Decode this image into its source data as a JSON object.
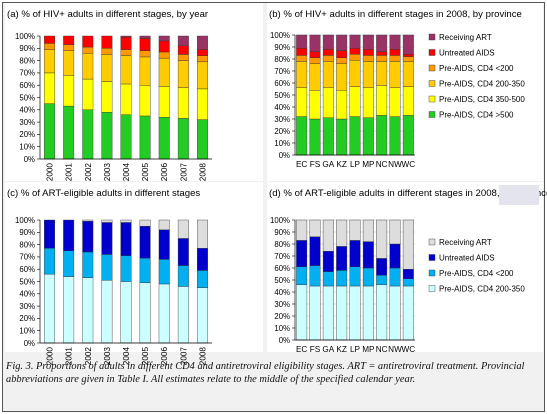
{
  "figure": {
    "caption": "Fig. 3. Proportions of adults in different CD4 and antiretroviral eligibility stages. ART = antiretroviral treatment. Provincial abbreviations are given in Table I. All estimates relate to the middle of the specified calendar year."
  },
  "chart_data": [
    {
      "id": "a",
      "type": "bar",
      "stacked": true,
      "title": "(a) % of HIV+ adults in different stages, by year",
      "categories": [
        "2000",
        "2001",
        "2002",
        "2003",
        "2004",
        "2005",
        "2006",
        "2007",
        "2008"
      ],
      "ylim": [
        0,
        100
      ],
      "yticks": [
        "0%",
        "10%",
        "20%",
        "30%",
        "40%",
        "50%",
        "60%",
        "70%",
        "80%",
        "90%",
        "100%"
      ],
      "grid": false,
      "series": [
        {
          "name": "Pre-AIDS, CD4 >500",
          "color": "#22cc22",
          "values": [
            45,
            43,
            40,
            38,
            36,
            35,
            34,
            33,
            32
          ]
        },
        {
          "name": "Pre-AIDS, CD4 350-500",
          "color": "#ffff00",
          "values": [
            25,
            25,
            25,
            25,
            25,
            25,
            25,
            25,
            25
          ]
        },
        {
          "name": "Pre-AIDS, CD4 200-350",
          "color": "#ffcc00",
          "values": [
            19,
            20,
            21,
            22,
            23,
            23,
            23,
            22,
            22
          ]
        },
        {
          "name": "Pre-AIDS, CD4 <200",
          "color": "#ff9900",
          "values": [
            5,
            5,
            5,
            5,
            5,
            5,
            5,
            5,
            5
          ]
        },
        {
          "name": "Untreated AIDS",
          "color": "#ff0000",
          "values": [
            6,
            7,
            9,
            10,
            10,
            10,
            9,
            7,
            5
          ]
        },
        {
          "name": "Receiving ART",
          "color": "#993366",
          "values": [
            0,
            0,
            0,
            0,
            1,
            2,
            4,
            8,
            11
          ]
        }
      ]
    },
    {
      "id": "b",
      "type": "bar",
      "stacked": true,
      "title": "(b) % of HIV+ adults in different stages in 2008, by province",
      "categories": [
        "EC",
        "FS",
        "GA",
        "KZ",
        "LP",
        "MP",
        "NC",
        "NW",
        "WC"
      ],
      "ylim": [
        0,
        100
      ],
      "yticks": [
        "0%",
        "10%",
        "20%",
        "30%",
        "40%",
        "50%",
        "60%",
        "70%",
        "80%",
        "90%",
        "100%"
      ],
      "grid": true,
      "legend": "right",
      "series": [
        {
          "name": "Pre-AIDS, CD4 >500",
          "color": "#22cc22",
          "values": [
            32,
            30,
            31,
            30,
            32,
            31,
            33,
            32,
            33
          ]
        },
        {
          "name": "Pre-AIDS, CD4 350-500",
          "color": "#ffff00",
          "values": [
            24,
            24,
            25,
            24,
            25,
            25,
            25,
            24,
            24
          ]
        },
        {
          "name": "Pre-AIDS, CD4 200-350",
          "color": "#ffcc00",
          "values": [
            22,
            22,
            22,
            22,
            22,
            22,
            20,
            22,
            21
          ]
        },
        {
          "name": "Pre-AIDS, CD4 <200",
          "color": "#ff9900",
          "values": [
            5,
            5,
            5,
            5,
            5,
            5,
            5,
            5,
            4
          ]
        },
        {
          "name": "Untreated AIDS",
          "color": "#ff0000",
          "values": [
            6,
            5,
            5,
            6,
            5,
            5,
            3,
            5,
            2
          ]
        },
        {
          "name": "Receiving ART",
          "color": "#993366",
          "values": [
            11,
            14,
            12,
            13,
            11,
            12,
            14,
            12,
            16
          ]
        }
      ]
    },
    {
      "id": "c",
      "type": "bar",
      "stacked": true,
      "title": "(c) % of ART-eligible adults in different stages",
      "categories": [
        "2000",
        "2001",
        "2002",
        "2003",
        "2004",
        "2005",
        "2006",
        "2007",
        "2008"
      ],
      "ylim": [
        0,
        100
      ],
      "yticks": [
        "0%",
        "10%",
        "20%",
        "30%",
        "40%",
        "50%",
        "60%",
        "70%",
        "80%",
        "90%",
        "100%"
      ],
      "grid": false,
      "series": [
        {
          "name": "Pre-AIDS, CD4 200-350",
          "color": "#ccffff",
          "values": [
            56,
            54,
            53,
            51,
            50,
            49,
            48,
            46,
            45
          ]
        },
        {
          "name": "Pre-AIDS, CD4 <200",
          "color": "#00b0f0",
          "values": [
            21,
            21,
            21,
            21,
            21,
            20,
            20,
            17,
            14
          ]
        },
        {
          "name": "Untreated AIDS",
          "color": "#0000cc",
          "values": [
            23,
            25,
            25,
            26,
            27,
            26,
            24,
            22,
            18
          ]
        },
        {
          "name": "Receiving ART",
          "color": "#dddddd",
          "values": [
            0,
            0,
            1,
            2,
            2,
            5,
            8,
            15,
            23
          ]
        }
      ]
    },
    {
      "id": "d",
      "type": "bar",
      "stacked": true,
      "title": "(d) % of ART-eligible adults in different stages in 2008, by province",
      "categories": [
        "EC",
        "FS",
        "GA",
        "KZ",
        "LP",
        "MP",
        "NC",
        "NW",
        "WC"
      ],
      "ylim": [
        0,
        100
      ],
      "yticks": [
        "0%",
        "10%",
        "20%",
        "30%",
        "40%",
        "50%",
        "60%",
        "70%",
        "80%",
        "90%",
        "100%"
      ],
      "grid": true,
      "legend": "right",
      "series": [
        {
          "name": "Pre-AIDS, CD4 200-350",
          "color": "#ccffff",
          "values": [
            46,
            45,
            45,
            45,
            45,
            45,
            46,
            45,
            45
          ]
        },
        {
          "name": "Pre-AIDS, CD4 <200",
          "color": "#00b0f0",
          "values": [
            15,
            17,
            12,
            13,
            16,
            15,
            8,
            15,
            6
          ]
        },
        {
          "name": "Untreated AIDS",
          "color": "#0000cc",
          "values": [
            22,
            24,
            17,
            20,
            22,
            22,
            14,
            20,
            8
          ]
        },
        {
          "name": "Receiving ART",
          "color": "#dddddd",
          "values": [
            17,
            14,
            26,
            22,
            17,
            18,
            32,
            20,
            41
          ]
        }
      ]
    }
  ]
}
